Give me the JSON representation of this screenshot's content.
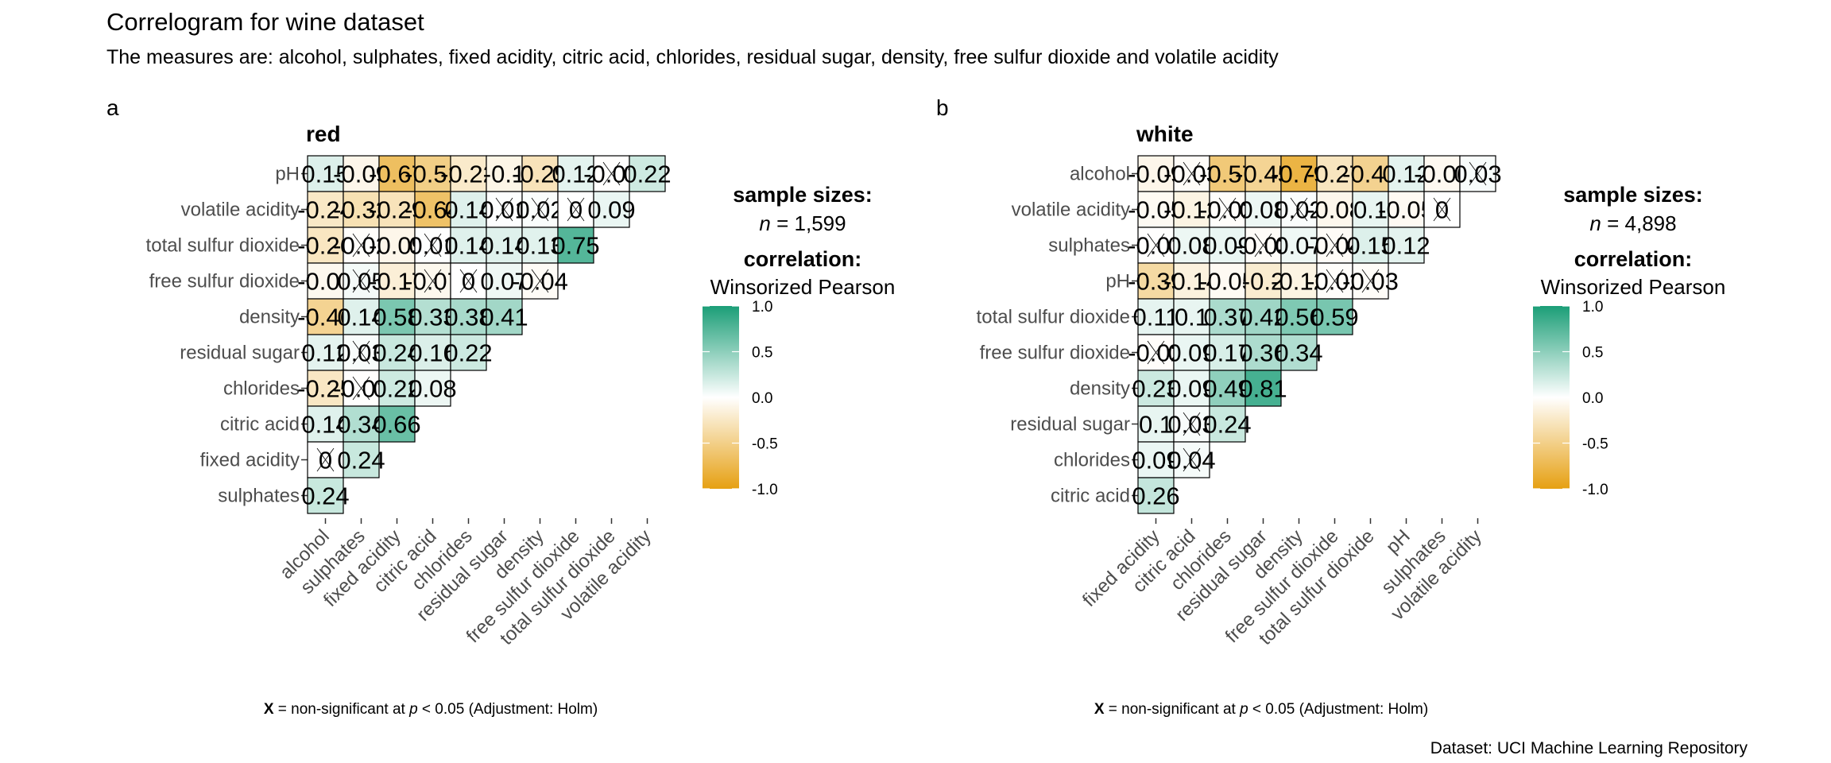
{
  "title": "Correlogram for wine dataset",
  "subtitle": "The measures are: alcohol, sulphates, fixed acidity, citric acid, chlorides, residual sugar, density, free sulfur dioxide and volatile acidity",
  "caption": "Dataset: UCI Machine Learning Repository",
  "colors": {
    "positive": "#1B9E77",
    "zero": "#FFFFFF",
    "negative": "#E6A012"
  },
  "chart_data": [
    {
      "type": "heatmap",
      "tag": "a",
      "title": "red",
      "rows": [
        "pH",
        "volatile acidity",
        "total sulfur dioxide",
        "free sulfur dioxide",
        "density",
        "residual sugar",
        "chlorides",
        "citric acid",
        "fixed acidity",
        "sulphates"
      ],
      "columns": [
        "alcohol",
        "sulphates",
        "fixed acidity",
        "citric acid",
        "chlorides",
        "residual sugar",
        "density",
        "free sulfur dioxide",
        "total sulfur dioxide",
        "volatile acidity"
      ],
      "values": [
        [
          0.15,
          -0.09,
          -0.67,
          -0.51,
          -0.22,
          -0.1,
          -0.29,
          0.12,
          -0.01,
          0.22
        ],
        [
          -0.24,
          -0.32,
          -0.29,
          -0.64,
          0.14,
          0.01,
          0.02,
          0,
          0.09
        ],
        [
          -0.26,
          -0.02,
          -0.09,
          0.01,
          0.14,
          0.14,
          0.13,
          0.75
        ],
        [
          -0.07,
          0.05,
          -0.17,
          -0.07,
          0,
          0.07,
          -0.04
        ],
        [
          -0.46,
          0.14,
          0.58,
          0.33,
          0.38,
          0.41
        ],
        [
          0.12,
          0.03,
          0.24,
          0.16,
          0.22
        ],
        [
          -0.25,
          -0.01,
          0.22,
          0.08
        ],
        [
          0.14,
          0.34,
          0.66
        ],
        [
          0,
          0.24
        ],
        [
          0.24
        ]
      ],
      "nonsignificant": [
        [
          false,
          false,
          false,
          false,
          false,
          false,
          false,
          false,
          true,
          false
        ],
        [
          false,
          false,
          false,
          false,
          false,
          true,
          true,
          true,
          false
        ],
        [
          false,
          true,
          false,
          true,
          false,
          false,
          false,
          false
        ],
        [
          false,
          true,
          false,
          true,
          true,
          false,
          true
        ],
        [
          false,
          false,
          false,
          false,
          false,
          false
        ],
        [
          false,
          true,
          false,
          false,
          false
        ],
        [
          false,
          true,
          false,
          false
        ],
        [
          false,
          false,
          false
        ],
        [
          true,
          false
        ],
        [
          false
        ]
      ],
      "legend": {
        "sample_label": "sample sizes:",
        "n": "n = 1,599",
        "corr_label": "correlation:",
        "method": "Winsorized Pearson",
        "ticks": [
          "1.0",
          "0.5",
          "0.0",
          "-0.5",
          "-1.0"
        ],
        "range": [
          -1,
          1
        ]
      },
      "footnote": "X = non-significant at p < 0.05 (Adjustment: Holm)"
    },
    {
      "type": "heatmap",
      "tag": "b",
      "title": "white",
      "rows": [
        "alcohol",
        "volatile acidity",
        "sulphates",
        "pH",
        "total sulfur dioxide",
        "free sulfur dioxide",
        "density",
        "residual sugar",
        "chlorides",
        "citric acid"
      ],
      "columns": [
        "fixed acidity",
        "citric acid",
        "chlorides",
        "residual sugar",
        "density",
        "free sulfur dioxide",
        "total sulfur dioxide",
        "pH",
        "sulphates",
        "volatile acidity"
      ],
      "values": [
        [
          -0.09,
          -0.03,
          -0.57,
          -0.45,
          -0.79,
          -0.27,
          -0.47,
          0.12,
          -0.06,
          0.03
        ],
        [
          -0.05,
          -0.12,
          -0.02,
          0.08,
          0.02,
          -0.08,
          0.1,
          -0.05,
          0
        ],
        [
          -0.01,
          0.08,
          0.09,
          -0.03,
          0.07,
          -0.04,
          0.15,
          0.12
        ],
        [
          -0.39,
          -0.14,
          -0.05,
          -0.2,
          -0.12,
          -0.02,
          -0.03
        ],
        [
          0.11,
          0.1,
          0.37,
          0.42,
          0.56,
          0.59
        ],
        [
          -0.02,
          0.09,
          0.17,
          0.36,
          0.34
        ],
        [
          0.23,
          0.09,
          0.49,
          0.81
        ],
        [
          0.1,
          0.03,
          0.24
        ],
        [
          0.09,
          0.04
        ],
        [
          0.26
        ]
      ],
      "nonsignificant": [
        [
          false,
          true,
          false,
          false,
          false,
          false,
          false,
          false,
          false,
          true
        ],
        [
          false,
          false,
          true,
          false,
          true,
          false,
          false,
          false,
          true
        ],
        [
          true,
          false,
          false,
          true,
          false,
          true,
          false,
          false
        ],
        [
          false,
          false,
          false,
          false,
          false,
          true,
          true
        ],
        [
          false,
          false,
          false,
          false,
          false,
          false
        ],
        [
          true,
          false,
          false,
          false,
          false
        ],
        [
          false,
          false,
          false,
          false
        ],
        [
          false,
          true,
          false
        ],
        [
          false,
          true
        ],
        [
          false
        ]
      ],
      "legend": {
        "sample_label": "sample sizes:",
        "n": "n = 4,898",
        "corr_label": "correlation:",
        "method": "Winsorized Pearson",
        "ticks": [
          "1.0",
          "0.5",
          "0.0",
          "-0.5",
          "-1.0"
        ],
        "range": [
          -1,
          1
        ]
      },
      "footnote": "X = non-significant at p < 0.05 (Adjustment: Holm)"
    }
  ]
}
